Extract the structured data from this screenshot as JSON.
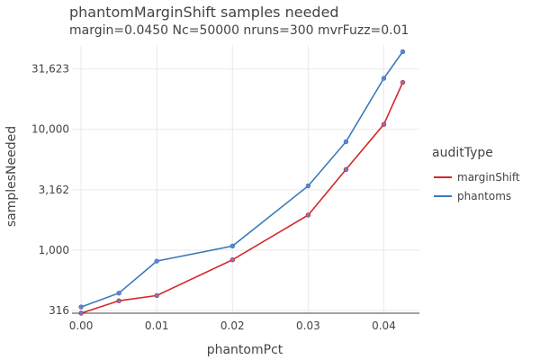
{
  "chart_data": {
    "type": "line",
    "title": "phantomMarginShift samples needed",
    "subtitle": "margin=0.0450 Nc=50000 nruns=300 mvrFuzz=0.01",
    "xlabel": "phantomPct",
    "ylabel": "samplesNeeded",
    "y_scale": "log",
    "xlim": [
      -0.0012,
      0.0447
    ],
    "ylim": [
      300,
      50000
    ],
    "x_ticks": [
      0.0,
      0.01,
      0.02,
      0.03,
      0.04
    ],
    "x_tick_labels": [
      "0.00",
      "0.01",
      "0.02",
      "0.03",
      "0.04"
    ],
    "y_ticks": [
      316,
      1000,
      3162,
      10000,
      31623
    ],
    "y_tick_labels": [
      "316",
      "1,000",
      "3,162",
      "10,000",
      "31,623"
    ],
    "grid": true,
    "legend": {
      "title": "auditType",
      "position": "right"
    },
    "x": [
      0.0,
      0.005,
      0.01,
      0.02,
      0.03,
      0.035,
      0.04,
      0.0425
    ],
    "series": [
      {
        "name": "marginShift",
        "color": "#d62728",
        "values": [
          300,
          380,
          420,
          830,
          1950,
          4650,
          11000,
          24500
        ]
      },
      {
        "name": "phantoms",
        "color": "#3a7ab8",
        "values": [
          338,
          440,
          810,
          1080,
          3400,
          7900,
          26500,
          44000
        ]
      }
    ],
    "marker_color": "#6a7fd8"
  }
}
